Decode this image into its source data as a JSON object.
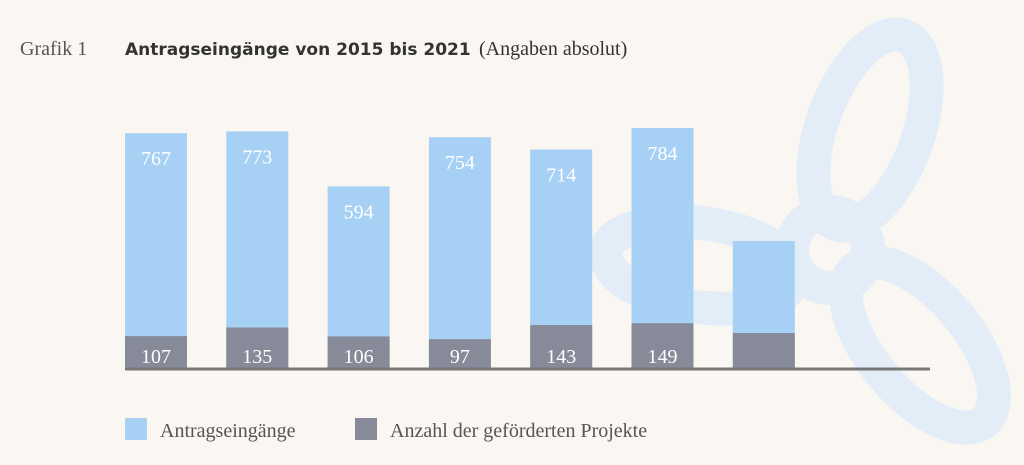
{
  "chart_data": {
    "type": "bar",
    "label": "Grafik 1",
    "title": "Antragseingänge von 2015 bis 2021",
    "subtitle": "(Angaben absolut)",
    "categories": [
      null,
      null,
      null,
      null,
      null,
      null,
      null
    ],
    "series": [
      {
        "name": "Antragseingänge",
        "color": "#a6d1f4",
        "values": [
          767,
          773,
          594,
          754,
          714,
          784,
          416
        ],
        "value_labels": [
          "767",
          "773",
          "594",
          "754",
          "714",
          "784",
          null
        ]
      },
      {
        "name": "Anzahl der geförderten Projekte",
        "color": "#878a99",
        "values": [
          107,
          135,
          106,
          97,
          143,
          149,
          117
        ],
        "value_labels": [
          "107",
          "135",
          "106",
          "97",
          "143",
          "149",
          null
        ]
      }
    ]
  }
}
